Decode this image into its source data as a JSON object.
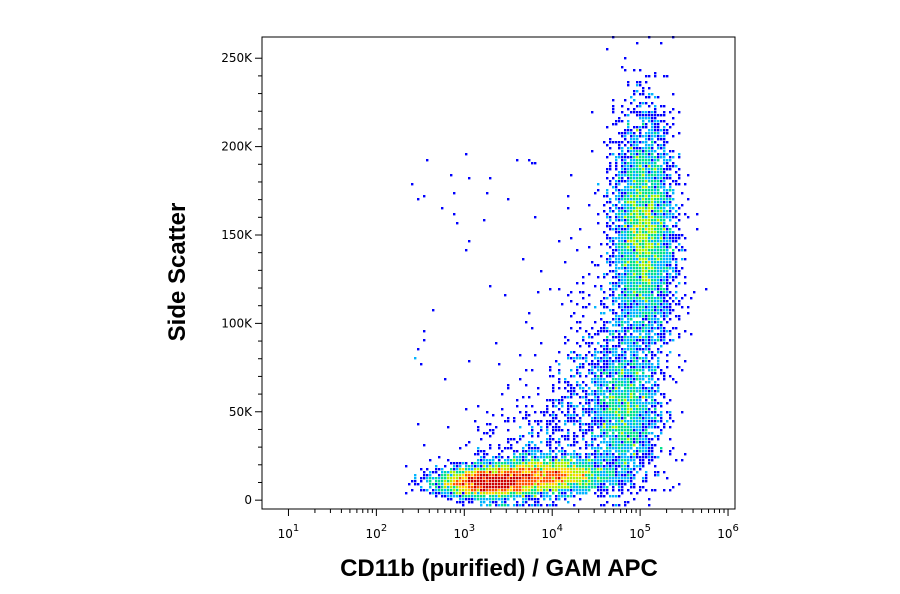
{
  "chart_data": {
    "type": "scatter",
    "subtype": "flow-cytometry density dot plot",
    "xlabel": "CD11b (purified) / GAM APC",
    "ylabel": "Side Scatter",
    "x_scale": "log",
    "xlim": [
      5,
      1200000
    ],
    "x_ticks": [
      {
        "value": 10,
        "base": "10",
        "exp": "1"
      },
      {
        "value": 100,
        "base": "10",
        "exp": "2"
      },
      {
        "value": 1000,
        "base": "10",
        "exp": "3"
      },
      {
        "value": 10000,
        "base": "10",
        "exp": "4"
      },
      {
        "value": 100000,
        "base": "10",
        "exp": "5"
      },
      {
        "value": 1000000,
        "base": "10",
        "exp": "6"
      }
    ],
    "y_scale": "linear",
    "ylim": [
      -5000,
      262000
    ],
    "y_ticks": [
      {
        "value": 0,
        "label": "0"
      },
      {
        "value": 50000,
        "label": "50K"
      },
      {
        "value": 100000,
        "label": "100K"
      },
      {
        "value": 150000,
        "label": "150K"
      },
      {
        "value": 200000,
        "label": "200K"
      },
      {
        "value": 250000,
        "label": "250K"
      }
    ],
    "grid": false,
    "legend": "none",
    "density_colors": [
      "#0000ff",
      "#00b4ff",
      "#00e08c",
      "#aaf000",
      "#ffd200",
      "#ff5000",
      "#cc0000"
    ],
    "populations": [
      {
        "x_center": 1900,
        "y_center": 10000,
        "x_spread_log": 0.28,
        "y_spread": 4000,
        "relative_density": "highest"
      },
      {
        "x_center": 9000,
        "y_center": 14000,
        "x_spread_log": 0.35,
        "y_spread": 5000,
        "relative_density": "medium"
      },
      {
        "x_center": 110000,
        "y_center": 150000,
        "x_spread_log": 0.17,
        "y_spread": 33000,
        "relative_density": "medium"
      },
      {
        "x_center": 65000,
        "y_center": 50000,
        "x_spread_log": 0.2,
        "y_spread": 20000,
        "relative_density": "low"
      }
    ]
  }
}
